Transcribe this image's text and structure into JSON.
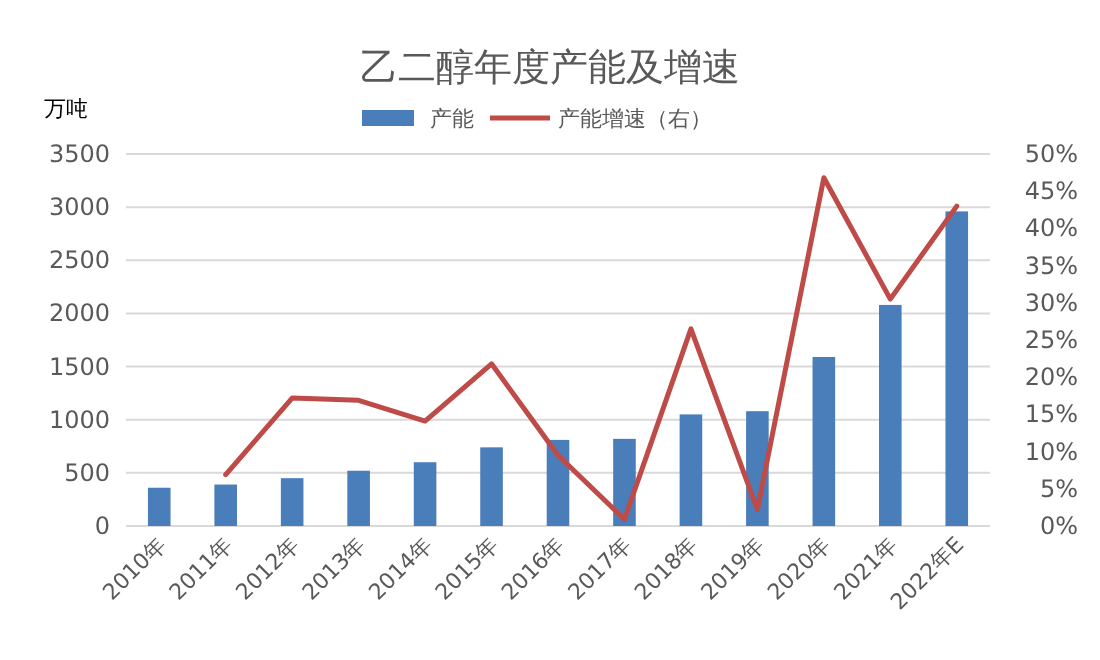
{
  "chart_data": {
    "type": "bar",
    "title": "乙二醇年度产能及增速",
    "ylabel": "万吨",
    "categories": [
      "2010年",
      "2011年",
      "2012年",
      "2013年",
      "2014年",
      "2015年",
      "2016年",
      "2017年",
      "2018年",
      "2019年",
      "2020年",
      "2021年",
      "2022年E"
    ],
    "series": [
      {
        "name": "产能",
        "color": "#4a7ebb",
        "values": [
          360,
          390,
          450,
          520,
          600,
          740,
          810,
          820,
          1050,
          1080,
          1590,
          2080,
          2960
        ]
      },
      {
        "name": "产能增速（右）",
        "type": "line",
        "axis": "y2",
        "color": "#be4b48",
        "values": [
          null,
          6.9,
          17.2,
          16.9,
          14.1,
          21.8,
          9.5,
          0.9,
          26.5,
          2.2,
          46.8,
          30.5,
          43
        ]
      }
    ],
    "ylim": [
      0,
      3500
    ],
    "yticks": [
      0,
      500,
      1000,
      1500,
      2000,
      2500,
      3000,
      3500
    ],
    "y2lim": [
      0,
      50
    ],
    "y2ticks": [
      {
        "value": 0,
        "label": "0%"
      },
      {
        "value": 5,
        "label": "5%"
      },
      {
        "value": 10,
        "label": "10%"
      },
      {
        "value": 15,
        "label": "15%"
      },
      {
        "value": 20,
        "label": "20%"
      },
      {
        "value": 25,
        "label": "25%"
      },
      {
        "value": 30,
        "label": "30%"
      },
      {
        "value": 35,
        "label": "35%"
      },
      {
        "value": 40,
        "label": "40%"
      },
      {
        "value": 45,
        "label": "45%"
      },
      {
        "value": 50,
        "label": "50%"
      }
    ],
    "grid": "y",
    "legend": "top"
  }
}
